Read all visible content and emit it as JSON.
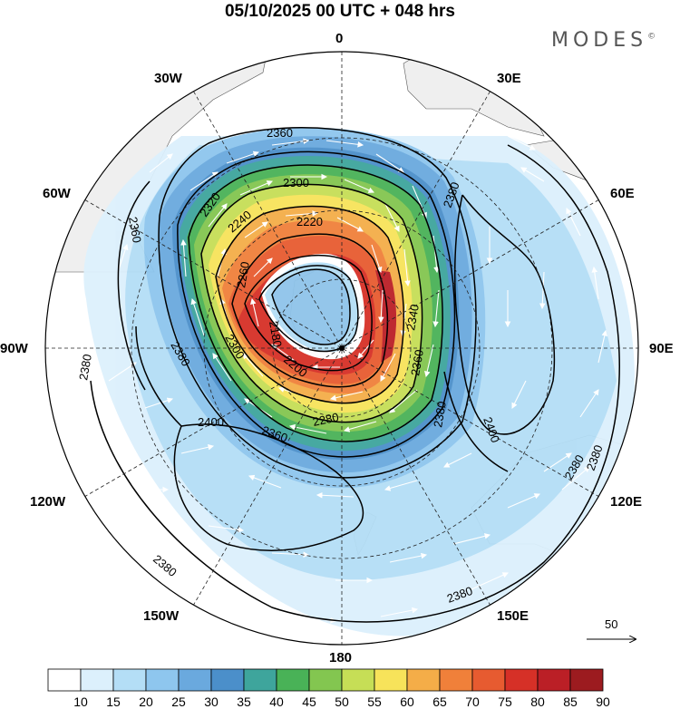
{
  "header": {
    "title": "05/10/2025  00 UTC  + 048 hrs",
    "brand": "MODES",
    "brand_mark": "©"
  },
  "map": {
    "projection": "south polar stereographic",
    "meridian_labels": [
      "0",
      "30E",
      "60E",
      "90E",
      "120E",
      "150E",
      "180",
      "150W",
      "120W",
      "90W",
      "60W",
      "30W"
    ],
    "contour_labels": [
      "2360",
      "2300",
      "2320",
      "2240",
      "2220",
      "2260",
      "2180",
      "2280",
      "2300",
      "2200",
      "2340",
      "2360",
      "2380",
      "2400",
      "2380",
      "2360",
      "2380",
      "2380",
      "2380",
      "2380",
      "2400",
      "2360",
      "2380",
      "2380"
    ],
    "reference_vector": "50"
  },
  "colorbar": {
    "colors": [
      "#ffffff",
      "#dcf0fc",
      "#b4def6",
      "#8ec6ee",
      "#6aa9de",
      "#4b8fca",
      "#3ea59c",
      "#49b257",
      "#83c650",
      "#c6de56",
      "#f7e35a",
      "#f4ad48",
      "#f0803a",
      "#e75b30",
      "#d63027",
      "#bb1f26",
      "#9c1b1f"
    ],
    "labels": [
      "10",
      "15",
      "20",
      "25",
      "30",
      "35",
      "40",
      "45",
      "50",
      "55",
      "60",
      "65",
      "70",
      "75",
      "80",
      "85",
      "90"
    ]
  }
}
